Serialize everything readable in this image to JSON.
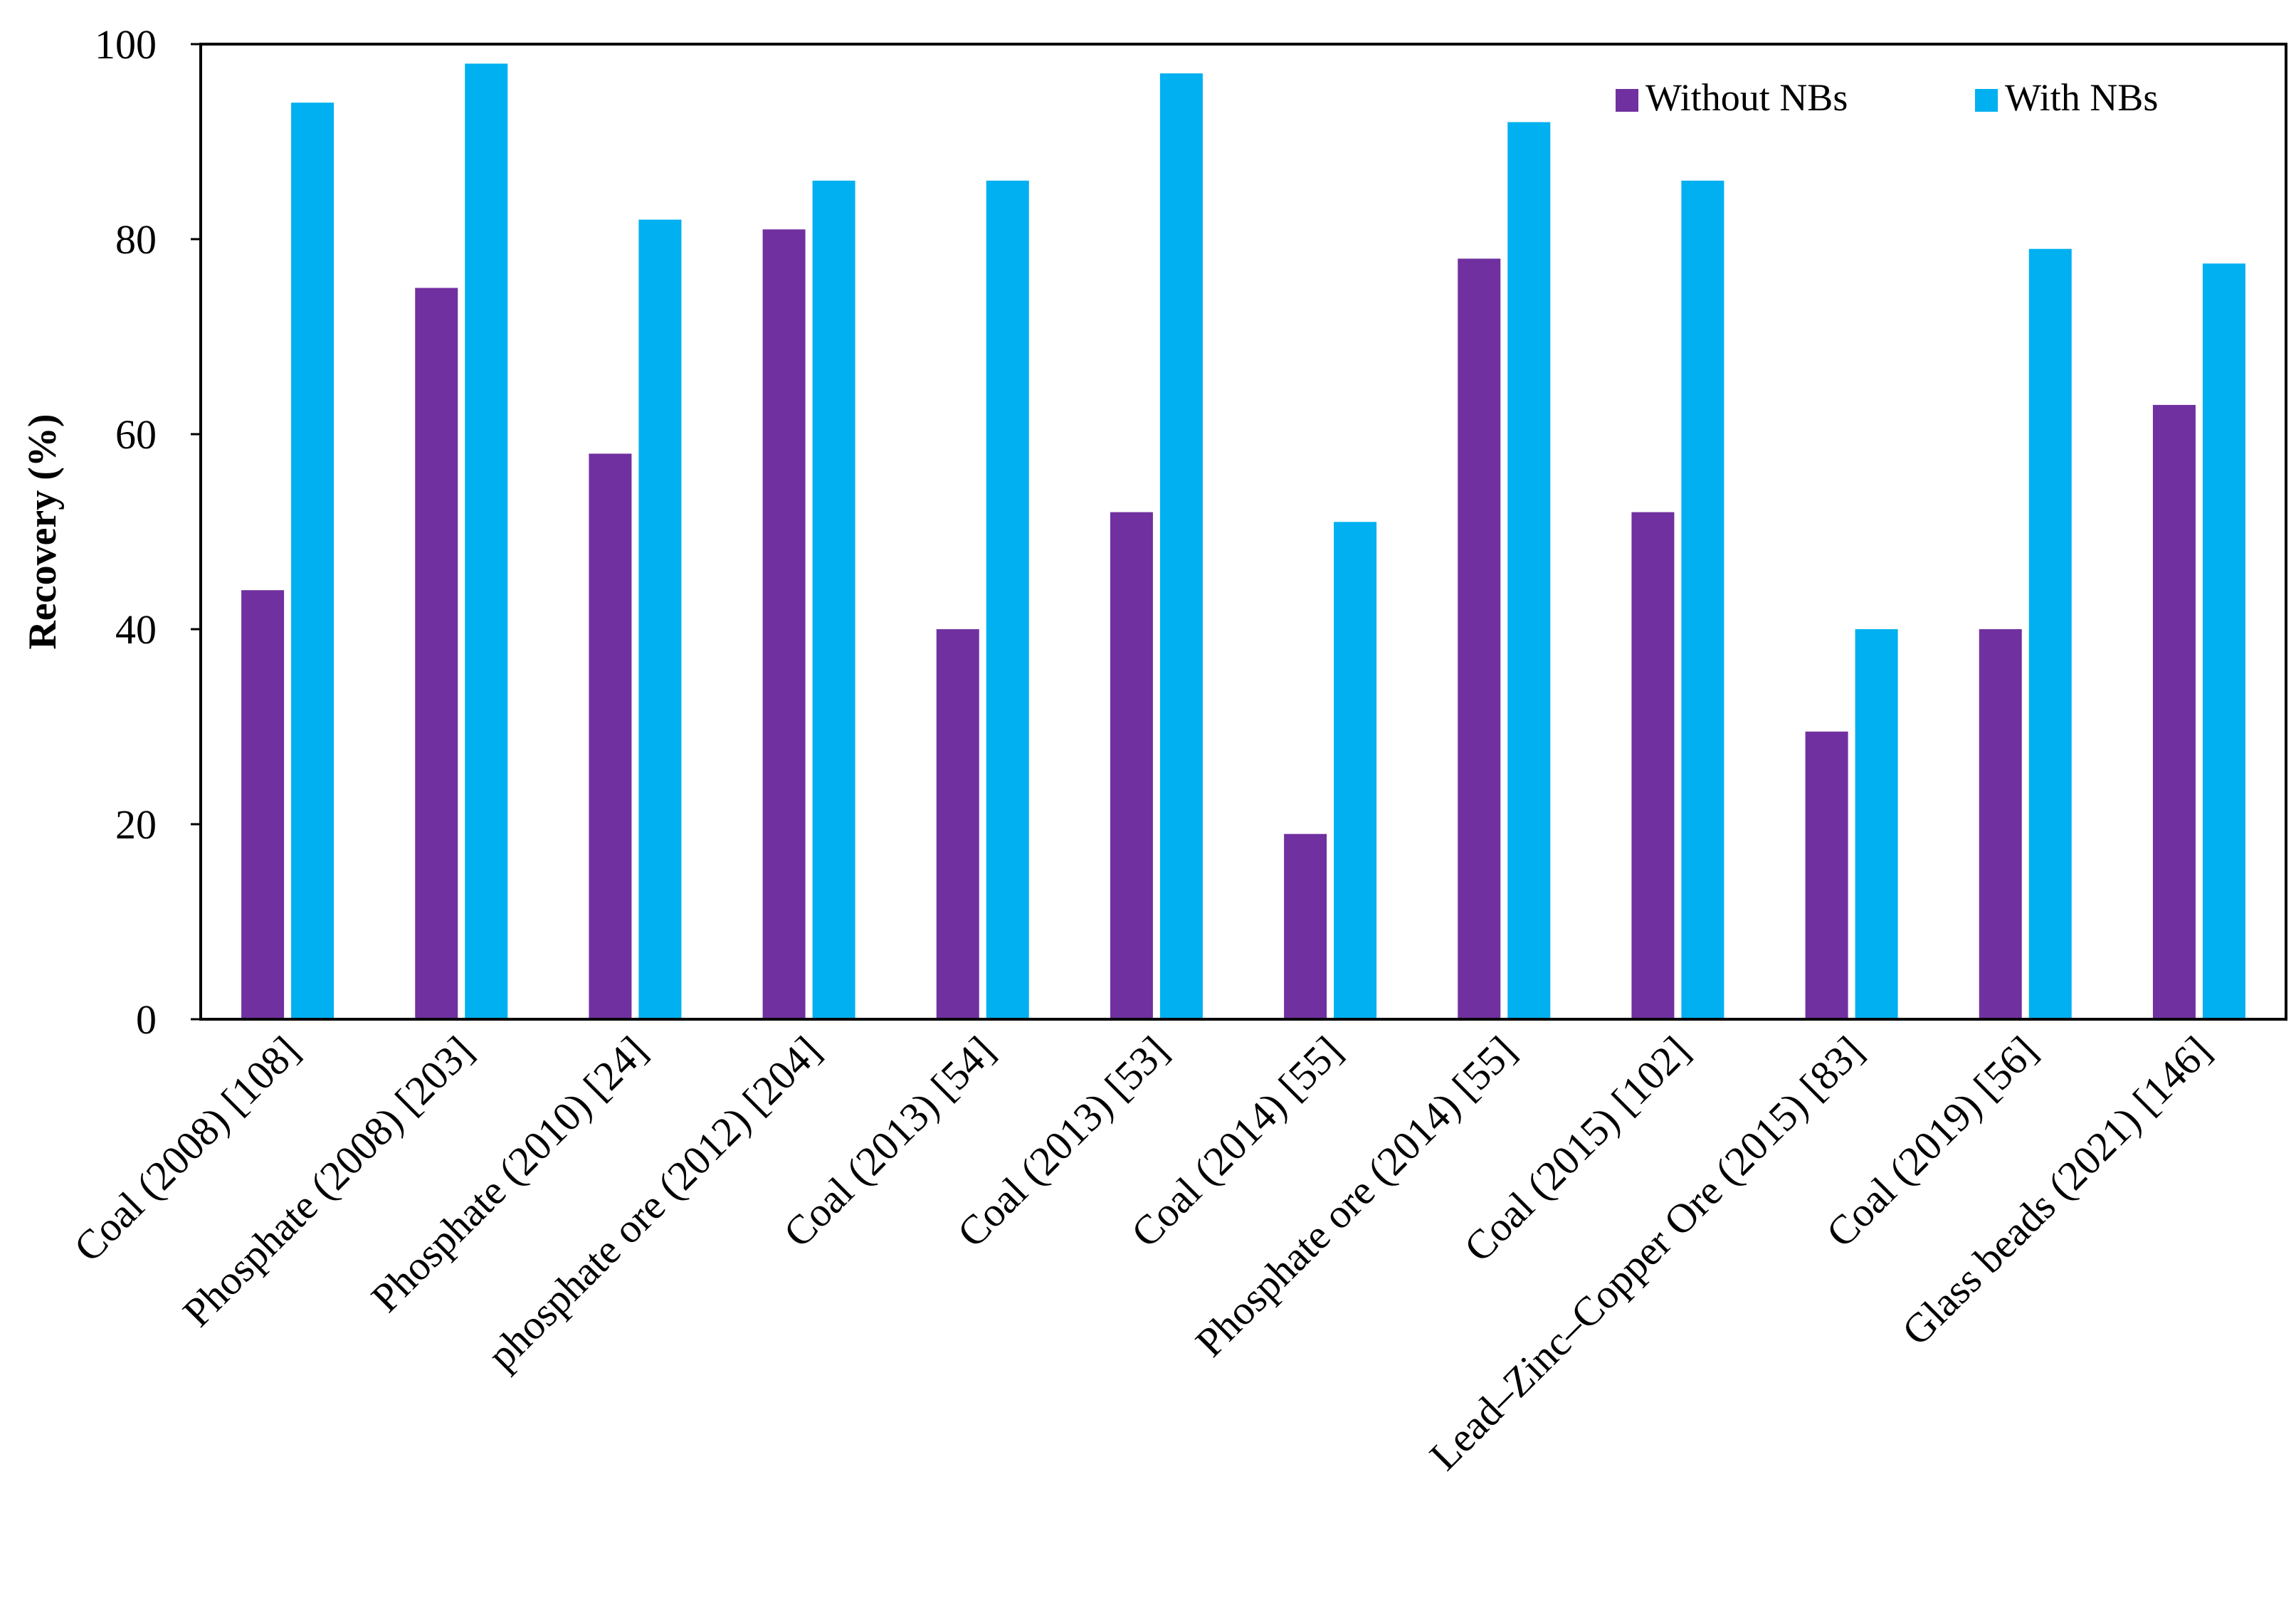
{
  "chart_data": {
    "type": "bar",
    "title": "",
    "xlabel": "",
    "ylabel": "Recovery (%)",
    "ylim": [
      0,
      100
    ],
    "yticks": [
      "0",
      "20",
      "40",
      "60",
      "80",
      "100"
    ],
    "grid": false,
    "legend_position": "top-right",
    "categories": [
      "Coal (2008) [108]",
      "Phosphate (2008) [203]",
      "Phosphate (2010) [24]",
      "phosphate ore (2012) [204]",
      "Coal (2013) [54]",
      "Coal (2013) [53]",
      "Coal (2014) [55]",
      "Phosphate ore (2014) [55]",
      "Coal (2015) [102]",
      "Lead–Zinc–Copper Ore (2015) [83]",
      "Coal (2019) [56]",
      "Glass beads (2021) [146]"
    ],
    "series": [
      {
        "name": "Without NBs",
        "color": "#7030a0",
        "values": [
          44,
          75,
          58,
          81,
          40,
          52,
          19,
          78,
          52,
          29.5,
          40,
          63
        ]
      },
      {
        "name": "With NBs",
        "color": "#00b0f0",
        "values": [
          94,
          98,
          82,
          86,
          86,
          97,
          51,
          92,
          86,
          40,
          79,
          77.5
        ]
      }
    ]
  }
}
